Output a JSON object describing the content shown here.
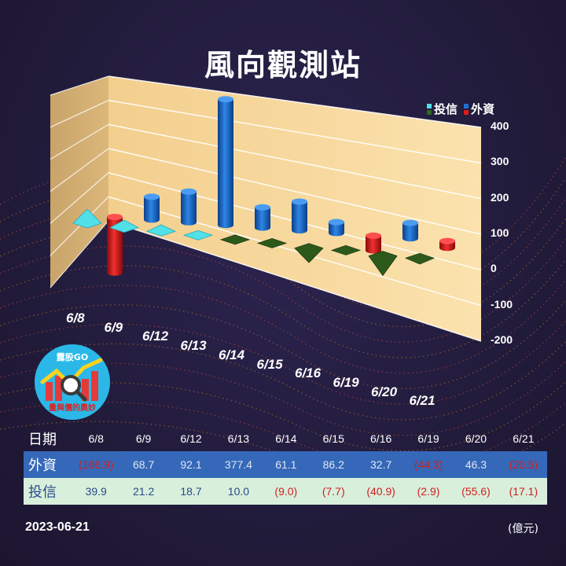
{
  "title": "風向觀測站",
  "legend": {
    "trust": "投信",
    "foreign": "外資"
  },
  "colors": {
    "foreign_pos": "#1e6fd0",
    "foreign_neg": "#e01b1b",
    "trust_pos": "#52e0e8",
    "trust_neg": "#2d5a1b",
    "wall": "#f6d79c",
    "table_foreign_bg": "#3568b8",
    "table_trust_bg": "#d8efdc"
  },
  "chart_data": {
    "type": "bar",
    "title": "風向觀測站",
    "categories": [
      "6/8",
      "6/9",
      "6/12",
      "6/13",
      "6/14",
      "6/15",
      "6/16",
      "6/19",
      "6/20",
      "6/21"
    ],
    "series": [
      {
        "name": "外資",
        "values": [
          -166.9,
          68.7,
          92.1,
          377.4,
          61.1,
          86.2,
          32.7,
          -44.3,
          46.3,
          -20.5
        ]
      },
      {
        "name": "投信",
        "values": [
          39.9,
          21.2,
          18.7,
          10.0,
          -9.0,
          -7.7,
          -40.9,
          -2.9,
          -55.6,
          -17.1
        ]
      }
    ],
    "yticks": [
      "400",
      "300",
      "200",
      "100",
      "0",
      "-100",
      "-200"
    ],
    "ylim": [
      -200,
      400
    ],
    "grid": true,
    "legend_position": "top-right"
  },
  "logo": {
    "name": "露股GO",
    "slogan": "量與價的奧妙"
  },
  "table": {
    "header_label": "日期",
    "dates": [
      "6/8",
      "6/9",
      "6/12",
      "6/13",
      "6/14",
      "6/15",
      "6/16",
      "6/19",
      "6/20",
      "6/21"
    ],
    "foreign_label": "外資",
    "foreign": [
      "(166.9)",
      "68.7",
      "92.1",
      "377.4",
      "61.1",
      "86.2",
      "32.7",
      "(44.3)",
      "46.3",
      "(20.5)"
    ],
    "trust_label": "投信",
    "trust": [
      "39.9",
      "21.2",
      "18.7",
      "10.0",
      "(9.0)",
      "(7.7)",
      "(40.9)",
      "(2.9)",
      "(55.6)",
      "(17.1)"
    ]
  },
  "footer": {
    "date": "2023-06-21",
    "unit": "(億元)"
  }
}
